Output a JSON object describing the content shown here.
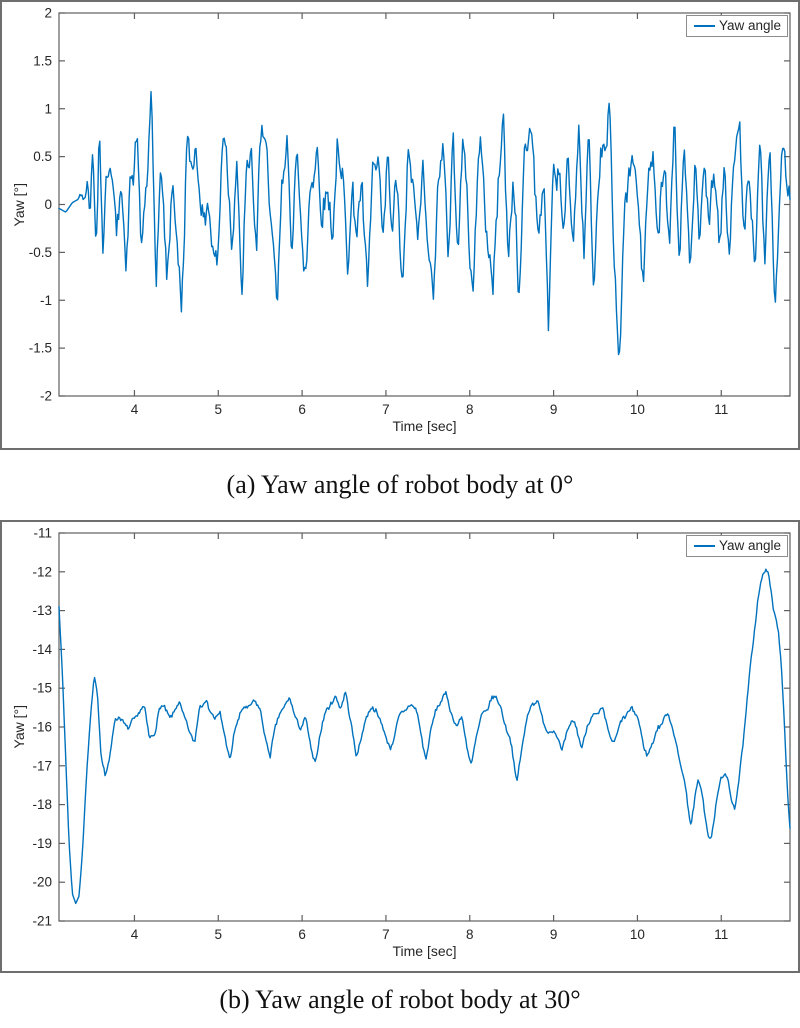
{
  "colors": {
    "line": "#0072BD",
    "axis": "#5f5f5f",
    "tick_text": "#262626"
  },
  "chart_data": [
    {
      "type": "line",
      "title": "(a) Yaw angle of robot body at 0°",
      "xlabel": "Time [sec]",
      "ylabel": "Yaw [°]",
      "legend": [
        "Yaw angle"
      ],
      "legend_position": "top-right",
      "line_color": "#0072BD",
      "grid": false,
      "xlim": [
        3.1,
        11.82
      ],
      "ylim": [
        -2,
        2
      ],
      "x_ticks": [
        4,
        5,
        6,
        7,
        8,
        9,
        10,
        11
      ],
      "y_ticks": [
        2,
        1.5,
        1,
        0.5,
        0,
        -0.5,
        -1,
        -1.5,
        -2
      ],
      "notable_points": [
        [
          3.58,
          0.87
        ],
        [
          4.2,
          0.87
        ],
        [
          5.52,
          0.87
        ],
        [
          7.92,
          0.9
        ],
        [
          9.66,
          1.12
        ],
        [
          9.78,
          -1.5
        ],
        [
          11.22,
          0.88
        ],
        [
          11.64,
          -1.08
        ]
      ],
      "series_keypoints": [
        [
          3.1,
          -0.04
        ],
        [
          3.18,
          -0.08
        ],
        [
          3.26,
          0.02
        ],
        [
          3.34,
          0.06
        ],
        [
          3.4,
          0.15
        ],
        [
          3.44,
          0.18
        ],
        [
          3.47,
          -0.12
        ],
        [
          3.5,
          0.48
        ],
        [
          3.54,
          -0.3
        ],
        [
          3.58,
          0.87
        ],
        [
          3.62,
          -0.72
        ],
        [
          3.66,
          0.3
        ],
        [
          3.72,
          0.55
        ],
        [
          3.78,
          -0.5
        ],
        [
          3.84,
          0.45
        ],
        [
          3.9,
          -0.8
        ],
        [
          3.96,
          0.35
        ],
        [
          4.02,
          0.7
        ],
        [
          4.08,
          -0.45
        ],
        [
          4.14,
          0.3
        ],
        [
          4.2,
          0.87
        ],
        [
          4.26,
          -0.6
        ],
        [
          4.32,
          0.4
        ],
        [
          4.38,
          -0.85
        ],
        [
          4.44,
          0.25
        ],
        [
          4.5,
          -0.4
        ],
        [
          4.56,
          -0.95
        ],
        [
          4.62,
          0.35
        ],
        [
          4.68,
          0.55
        ],
        [
          4.74,
          0.58
        ],
        [
          4.8,
          -0.3
        ],
        [
          4.86,
          0.2
        ],
        [
          4.92,
          -0.5
        ],
        [
          4.98,
          -0.6
        ],
        [
          5.04,
          0.45
        ],
        [
          5.1,
          0.6
        ],
        [
          5.16,
          -0.35
        ],
        [
          5.22,
          0.25
        ],
        [
          5.28,
          -0.77
        ],
        [
          5.34,
          0.3
        ],
        [
          5.4,
          0.45
        ],
        [
          5.46,
          -0.4
        ],
        [
          5.52,
          0.87
        ],
        [
          5.58,
          0.6
        ],
        [
          5.64,
          -0.5
        ],
        [
          5.7,
          -0.9
        ],
        [
          5.76,
          0.2
        ],
        [
          5.82,
          0.55
        ],
        [
          5.88,
          -0.35
        ],
        [
          5.94,
          0.55
        ],
        [
          6.0,
          -0.45
        ],
        [
          6.06,
          -0.6
        ],
        [
          6.12,
          0.35
        ],
        [
          6.18,
          0.62
        ],
        [
          6.24,
          -0.4
        ],
        [
          6.3,
          0.45
        ],
        [
          6.36,
          -0.55
        ],
        [
          6.42,
          0.6
        ],
        [
          6.48,
          0.4
        ],
        [
          6.54,
          -0.7
        ],
        [
          6.6,
          0.25
        ],
        [
          6.66,
          -0.45
        ],
        [
          6.72,
          0.35
        ],
        [
          6.78,
          -1.0
        ],
        [
          6.84,
          0.3
        ],
        [
          6.9,
          0.65
        ],
        [
          6.96,
          -0.55
        ],
        [
          7.02,
          0.65
        ],
        [
          7.08,
          -0.4
        ],
        [
          7.14,
          0.3
        ],
        [
          7.2,
          -0.95
        ],
        [
          7.26,
          0.35
        ],
        [
          7.32,
          0.5
        ],
        [
          7.38,
          -0.6
        ],
        [
          7.44,
          0.6
        ],
        [
          7.5,
          -0.45
        ],
        [
          7.56,
          -1.05
        ],
        [
          7.62,
          0.25
        ],
        [
          7.68,
          0.55
        ],
        [
          7.74,
          -0.35
        ],
        [
          7.8,
          0.55
        ],
        [
          7.86,
          -0.5
        ],
        [
          7.92,
          0.9
        ],
        [
          7.98,
          -0.4
        ],
        [
          8.04,
          -0.75
        ],
        [
          8.1,
          0.35
        ],
        [
          8.16,
          0.5
        ],
        [
          8.22,
          -0.55
        ],
        [
          8.28,
          -0.95
        ],
        [
          8.34,
          0.4
        ],
        [
          8.4,
          0.72
        ],
        [
          8.46,
          -0.45
        ],
        [
          8.52,
          0.3
        ],
        [
          8.58,
          -1.08
        ],
        [
          8.64,
          0.4
        ],
        [
          8.7,
          0.6
        ],
        [
          8.76,
          0.78
        ],
        [
          8.82,
          -0.55
        ],
        [
          8.88,
          0.35
        ],
        [
          8.94,
          -1.15
        ],
        [
          9.0,
          0.25
        ],
        [
          9.06,
          0.55
        ],
        [
          9.12,
          -0.45
        ],
        [
          9.18,
          0.6
        ],
        [
          9.24,
          -0.5
        ],
        [
          9.3,
          0.75
        ],
        [
          9.36,
          -0.35
        ],
        [
          9.42,
          0.55
        ],
        [
          9.48,
          -0.9
        ],
        [
          9.54,
          0.3
        ],
        [
          9.6,
          0.5
        ],
        [
          9.66,
          1.12
        ],
        [
          9.72,
          -0.6
        ],
        [
          9.78,
          -1.5
        ],
        [
          9.84,
          -0.4
        ],
        [
          9.9,
          0.45
        ],
        [
          9.96,
          0.5
        ],
        [
          10.02,
          -0.35
        ],
        [
          10.08,
          -0.55
        ],
        [
          10.14,
          0.3
        ],
        [
          10.2,
          0.45
        ],
        [
          10.26,
          -0.45
        ],
        [
          10.32,
          0.55
        ],
        [
          10.38,
          -0.3
        ],
        [
          10.44,
          0.68
        ],
        [
          10.5,
          -0.4
        ],
        [
          10.56,
          0.5
        ],
        [
          10.62,
          -0.6
        ],
        [
          10.68,
          0.35
        ],
        [
          10.74,
          -0.45
        ],
        [
          10.8,
          0.55
        ],
        [
          10.86,
          -0.35
        ],
        [
          10.92,
          0.5
        ],
        [
          10.98,
          -0.5
        ],
        [
          11.04,
          0.3
        ],
        [
          11.1,
          -0.4
        ],
        [
          11.16,
          0.45
        ],
        [
          11.22,
          0.88
        ],
        [
          11.28,
          -0.45
        ],
        [
          11.34,
          0.4
        ],
        [
          11.4,
          -0.6
        ],
        [
          11.46,
          0.55
        ],
        [
          11.52,
          -0.35
        ],
        [
          11.58,
          0.5
        ],
        [
          11.64,
          -1.08
        ],
        [
          11.7,
          0.2
        ],
        [
          11.76,
          0.45
        ],
        [
          11.82,
          0.1
        ]
      ],
      "approx_noise": {
        "seed": 42,
        "jitter": 0.2,
        "a1": 0.15,
        "f1": 6.9,
        "a2": 0.09,
        "f2": 11.7,
        "ramp_start": 3.32,
        "ramp_len": 0.25
      }
    },
    {
      "type": "line",
      "title": "(b) Yaw angle of robot body at 30°",
      "xlabel": "Time [sec]",
      "ylabel": "Yaw [°]",
      "legend": [
        "Yaw angle"
      ],
      "legend_position": "top-right",
      "line_color": "#0072BD",
      "grid": false,
      "xlim": [
        3.1,
        11.82
      ],
      "ylim": [
        -21,
        -11
      ],
      "x_ticks": [
        4,
        5,
        6,
        7,
        8,
        9,
        10,
        11
      ],
      "y_ticks": [
        -11,
        -12,
        -13,
        -14,
        -15,
        -16,
        -17,
        -18,
        -19,
        -20,
        -21
      ],
      "notable_points": [
        [
          3.1,
          -12.9
        ],
        [
          3.3,
          -20.55
        ],
        [
          3.52,
          -14.68
        ],
        [
          8.56,
          -17.4
        ],
        [
          10.88,
          -18.9
        ],
        [
          11.56,
          -12.0
        ],
        [
          11.82,
          -18.6
        ]
      ],
      "series_keypoints": [
        [
          3.1,
          -12.9
        ],
        [
          3.14,
          -14.6
        ],
        [
          3.18,
          -16.8
        ],
        [
          3.22,
          -19.0
        ],
        [
          3.26,
          -20.3
        ],
        [
          3.3,
          -20.55
        ],
        [
          3.34,
          -20.35
        ],
        [
          3.38,
          -19.2
        ],
        [
          3.43,
          -17.2
        ],
        [
          3.48,
          -15.6
        ],
        [
          3.52,
          -14.68
        ],
        [
          3.56,
          -15.2
        ],
        [
          3.6,
          -16.7
        ],
        [
          3.65,
          -17.25
        ],
        [
          3.7,
          -16.8
        ],
        [
          3.76,
          -15.95
        ],
        [
          3.82,
          -15.7
        ],
        [
          3.88,
          -15.9
        ],
        [
          3.94,
          -16.05
        ],
        [
          4.0,
          -15.8
        ],
        [
          4.06,
          -15.55
        ],
        [
          4.12,
          -15.5
        ],
        [
          4.18,
          -16.35
        ],
        [
          4.24,
          -16.1
        ],
        [
          4.3,
          -15.55
        ],
        [
          4.36,
          -15.5
        ],
        [
          4.42,
          -15.75
        ],
        [
          4.48,
          -15.55
        ],
        [
          4.54,
          -15.45
        ],
        [
          4.6,
          -15.7
        ],
        [
          4.66,
          -16.15
        ],
        [
          4.72,
          -16.45
        ],
        [
          4.78,
          -15.4
        ],
        [
          4.84,
          -15.3
        ],
        [
          4.9,
          -15.6
        ],
        [
          4.96,
          -15.8
        ],
        [
          5.02,
          -15.55
        ],
        [
          5.08,
          -16.35
        ],
        [
          5.14,
          -16.85
        ],
        [
          5.2,
          -16.0
        ],
        [
          5.26,
          -15.7
        ],
        [
          5.32,
          -15.5
        ],
        [
          5.38,
          -15.4
        ],
        [
          5.44,
          -15.35
        ],
        [
          5.5,
          -15.6
        ],
        [
          5.56,
          -16.2
        ],
        [
          5.62,
          -16.8
        ],
        [
          5.68,
          -16.0
        ],
        [
          5.74,
          -15.6
        ],
        [
          5.8,
          -15.4
        ],
        [
          5.86,
          -15.35
        ],
        [
          5.92,
          -15.7
        ],
        [
          5.98,
          -16.05
        ],
        [
          6.04,
          -15.8
        ],
        [
          6.1,
          -16.45
        ],
        [
          6.16,
          -16.95
        ],
        [
          6.22,
          -16.15
        ],
        [
          6.28,
          -15.6
        ],
        [
          6.34,
          -15.35
        ],
        [
          6.4,
          -15.3
        ],
        [
          6.46,
          -15.5
        ],
        [
          6.52,
          -15.05
        ],
        [
          6.58,
          -15.9
        ],
        [
          6.64,
          -16.75
        ],
        [
          6.7,
          -16.3
        ],
        [
          6.76,
          -15.8
        ],
        [
          6.82,
          -15.55
        ],
        [
          6.88,
          -15.5
        ],
        [
          6.94,
          -15.9
        ],
        [
          7.0,
          -16.3
        ],
        [
          7.06,
          -16.55
        ],
        [
          7.12,
          -16.0
        ],
        [
          7.18,
          -15.7
        ],
        [
          7.24,
          -15.5
        ],
        [
          7.3,
          -15.4
        ],
        [
          7.36,
          -15.6
        ],
        [
          7.42,
          -16.15
        ],
        [
          7.48,
          -16.85
        ],
        [
          7.54,
          -16.05
        ],
        [
          7.6,
          -15.55
        ],
        [
          7.66,
          -15.25
        ],
        [
          7.72,
          -15.2
        ],
        [
          7.78,
          -15.65
        ],
        [
          7.84,
          -15.95
        ],
        [
          7.9,
          -15.75
        ],
        [
          7.96,
          -16.45
        ],
        [
          8.02,
          -16.95
        ],
        [
          8.08,
          -16.25
        ],
        [
          8.14,
          -15.75
        ],
        [
          8.2,
          -15.5
        ],
        [
          8.26,
          -15.3
        ],
        [
          8.32,
          -15.25
        ],
        [
          8.38,
          -15.55
        ],
        [
          8.44,
          -16.05
        ],
        [
          8.5,
          -16.55
        ],
        [
          8.56,
          -17.4
        ],
        [
          8.62,
          -16.55
        ],
        [
          8.68,
          -15.85
        ],
        [
          8.74,
          -15.35
        ],
        [
          8.8,
          -15.3
        ],
        [
          8.86,
          -15.75
        ],
        [
          8.92,
          -16.15
        ],
        [
          8.98,
          -16.0
        ],
        [
          9.04,
          -16.3
        ],
        [
          9.1,
          -16.6
        ],
        [
          9.16,
          -16.1
        ],
        [
          9.22,
          -15.85
        ],
        [
          9.28,
          -16.1
        ],
        [
          9.34,
          -16.5
        ],
        [
          9.4,
          -16.0
        ],
        [
          9.46,
          -15.75
        ],
        [
          9.52,
          -15.6
        ],
        [
          9.58,
          -15.55
        ],
        [
          9.64,
          -16.0
        ],
        [
          9.7,
          -16.4
        ],
        [
          9.76,
          -16.15
        ],
        [
          9.82,
          -15.85
        ],
        [
          9.88,
          -15.6
        ],
        [
          9.94,
          -15.5
        ],
        [
          10.0,
          -15.8
        ],
        [
          10.06,
          -16.3
        ],
        [
          10.12,
          -16.75
        ],
        [
          10.18,
          -16.45
        ],
        [
          10.24,
          -16.05
        ],
        [
          10.3,
          -15.8
        ],
        [
          10.36,
          -15.7
        ],
        [
          10.42,
          -16.0
        ],
        [
          10.48,
          -16.6
        ],
        [
          10.54,
          -17.2
        ],
        [
          10.6,
          -18.0
        ],
        [
          10.64,
          -18.5
        ],
        [
          10.68,
          -17.9
        ],
        [
          10.72,
          -17.4
        ],
        [
          10.76,
          -17.6
        ],
        [
          10.8,
          -18.2
        ],
        [
          10.84,
          -18.7
        ],
        [
          10.88,
          -18.9
        ],
        [
          10.92,
          -18.35
        ],
        [
          10.96,
          -17.7
        ],
        [
          11.0,
          -17.3
        ],
        [
          11.04,
          -17.15
        ],
        [
          11.08,
          -17.35
        ],
        [
          11.12,
          -17.95
        ],
        [
          11.16,
          -18.1
        ],
        [
          11.2,
          -17.5
        ],
        [
          11.24,
          -16.8
        ],
        [
          11.28,
          -16.0
        ],
        [
          11.32,
          -15.1
        ],
        [
          11.36,
          -14.2
        ],
        [
          11.4,
          -13.35
        ],
        [
          11.44,
          -12.65
        ],
        [
          11.48,
          -12.2
        ],
        [
          11.52,
          -12.02
        ],
        [
          11.56,
          -12.0
        ],
        [
          11.6,
          -12.55
        ],
        [
          11.64,
          -13.15
        ],
        [
          11.68,
          -13.55
        ],
        [
          11.72,
          -14.5
        ],
        [
          11.76,
          -16.2
        ],
        [
          11.79,
          -17.7
        ],
        [
          11.82,
          -18.6
        ]
      ],
      "approx_noise": {
        "seed": 7,
        "jitter": 0.1,
        "a1": 0.05,
        "f1": 5.3,
        "a2": 0.03,
        "f2": 9.1,
        "ramp_start": 3.45,
        "ramp_len": 0.2
      }
    }
  ]
}
